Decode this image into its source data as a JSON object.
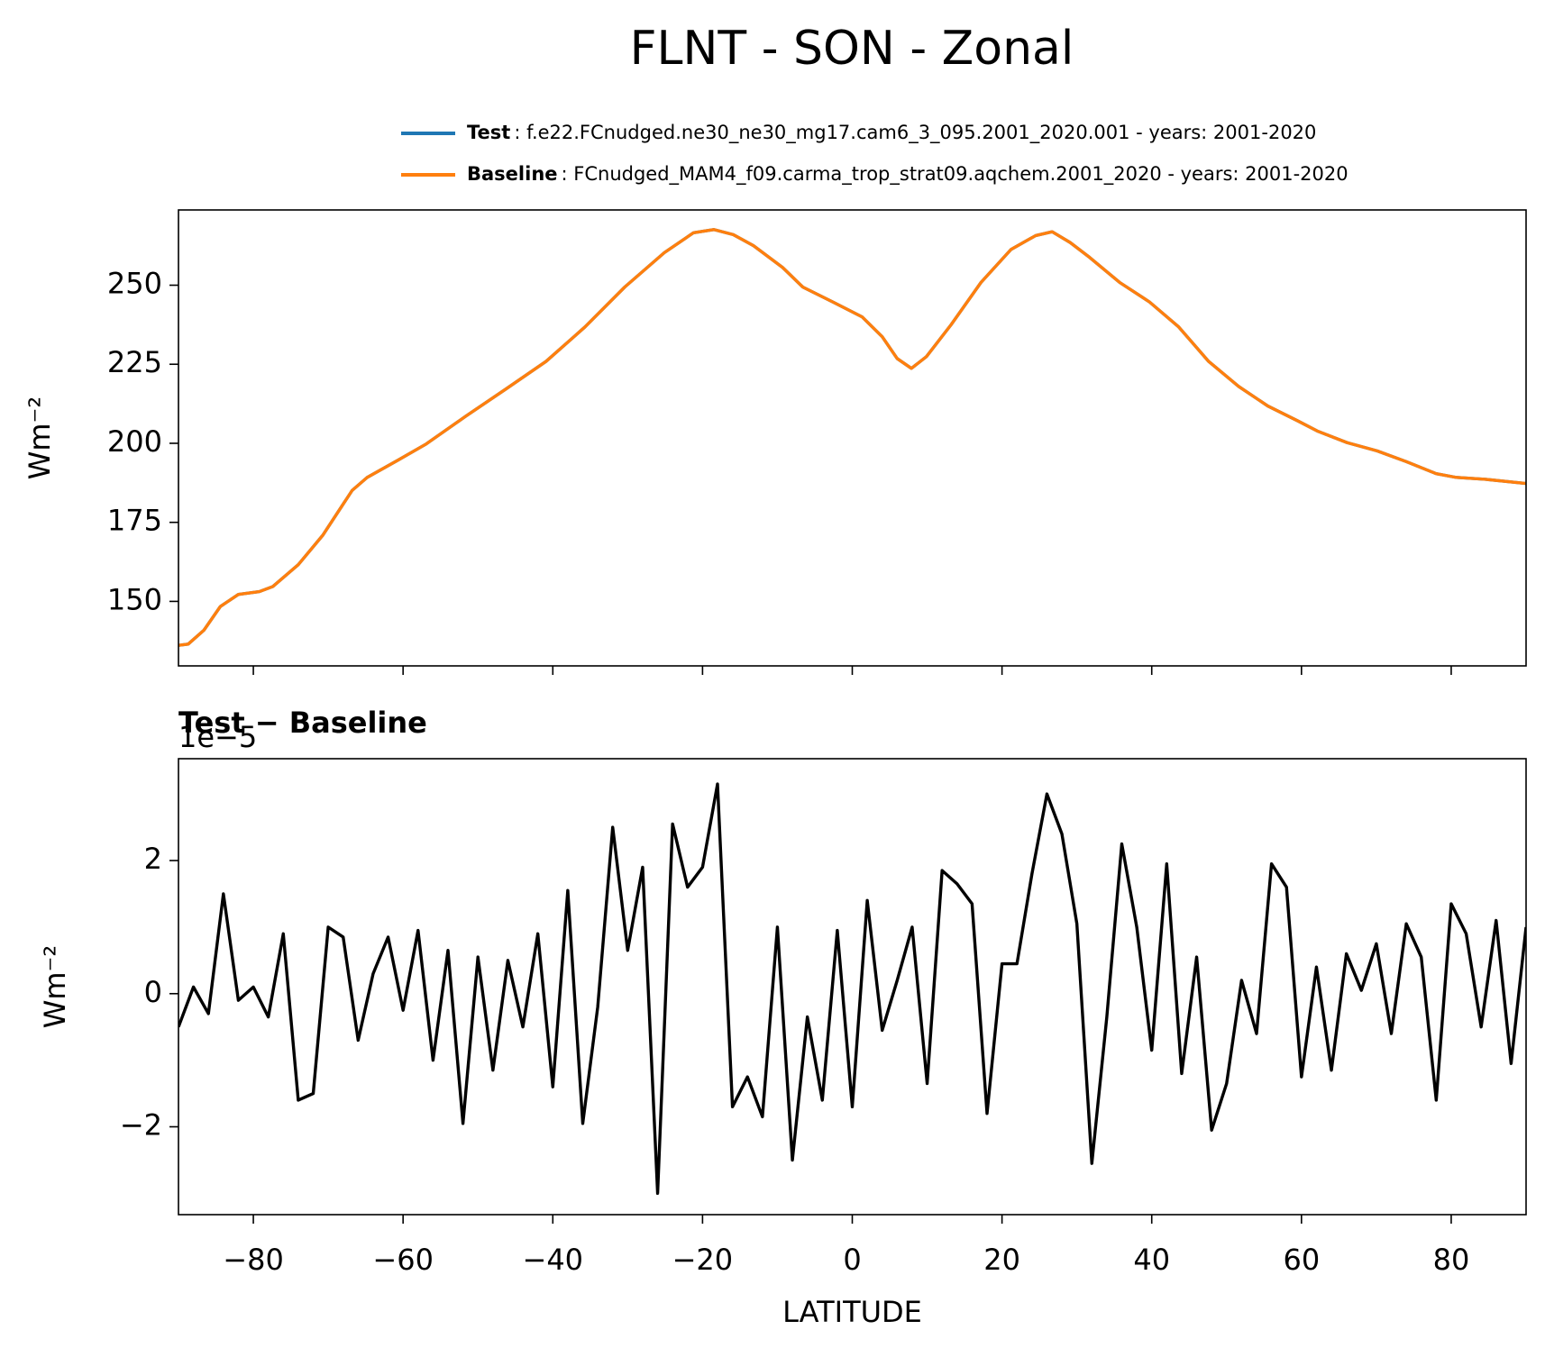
{
  "title": "FLNT - SON - Zonal",
  "chart_data": [
    {
      "type": "line",
      "ylabel": "Wm⁻²",
      "xlim": [
        -90,
        90
      ],
      "ylim": [
        129.6,
        273.8
      ],
      "xticks": [
        -80,
        -60,
        -40,
        -20,
        0,
        20,
        40,
        60,
        80
      ],
      "xtick_labels": false,
      "yticks": [
        150,
        175,
        200,
        225,
        250
      ],
      "x": [
        -90,
        -88.7,
        -86.6,
        -84.4,
        -82,
        -79.2,
        -77.4,
        -74,
        -70.7,
        -66.8,
        -64.8,
        -60.8,
        -56.9,
        -51.6,
        -46.3,
        -40.9,
        -35.7,
        -30.4,
        -25.1,
        -21.2,
        -18.5,
        -15.9,
        -13.2,
        -9.3,
        -6.6,
        -2.6,
        1.3,
        4,
        6,
        7.9,
        9.9,
        13.2,
        17.2,
        21.2,
        24.5,
        26.7,
        29.1,
        31.7,
        35.7,
        39.7,
        43.6,
        47.6,
        51.6,
        55.5,
        59.5,
        62.1,
        66.1,
        70.1,
        74,
        78,
        80.7,
        84.6,
        90
      ],
      "series": [
        {
          "name": "Test",
          "description": ": f.e22.FCnudged.ne30_ne30_mg17.cam6_3_095.2001_2020.001 - years: 2001-2020",
          "color": "#1f77b4",
          "values": [
            136.1,
            136.5,
            140.9,
            148.4,
            152.2,
            153.1,
            154.7,
            161.6,
            171,
            185.1,
            189.2,
            194.5,
            199.8,
            208.6,
            217.1,
            225.9,
            236.8,
            249.4,
            260.3,
            266.6,
            267.6,
            266,
            262.5,
            255.6,
            249.4,
            244.7,
            240,
            233.7,
            226.8,
            223.7,
            227.4,
            237.5,
            250.9,
            261.3,
            265.7,
            266.9,
            263.5,
            258.8,
            250.9,
            244.7,
            236.8,
            225.9,
            218,
            211.8,
            207.1,
            203.9,
            200.2,
            197.6,
            194.2,
            190.4,
            189.2,
            188.6,
            187.3
          ]
        },
        {
          "name": "Baseline",
          "description": ": FCnudged_MAM4_f09.carma_trop_strat09.aqchem.2001_2020 - years: 2001-2020",
          "color": "#ff7f0e",
          "values": [
            136.1,
            136.5,
            140.9,
            148.4,
            152.2,
            153.1,
            154.7,
            161.6,
            171,
            185.1,
            189.2,
            194.5,
            199.8,
            208.6,
            217.1,
            225.9,
            236.8,
            249.4,
            260.3,
            266.6,
            267.6,
            266,
            262.5,
            255.6,
            249.4,
            244.7,
            240,
            233.7,
            226.8,
            223.7,
            227.4,
            237.5,
            250.9,
            261.3,
            265.7,
            266.9,
            263.5,
            258.8,
            250.9,
            244.7,
            236.8,
            225.9,
            218,
            211.8,
            207.1,
            203.9,
            200.2,
            197.6,
            194.2,
            190.4,
            189.2,
            188.6,
            187.3
          ]
        }
      ]
    },
    {
      "type": "line",
      "title": "Test − Baseline",
      "offset_label": "1e−5",
      "xlabel": "LATITUDE",
      "ylabel": "Wm⁻²",
      "xlim": [
        -90,
        90
      ],
      "ylim": [
        -3.32,
        3.53
      ],
      "xticks": [
        {
          "value": -80,
          "label": "−80"
        },
        {
          "value": -60,
          "label": "−60"
        },
        {
          "value": -40,
          "label": "−40"
        },
        {
          "value": -20,
          "label": "−20"
        },
        0,
        20,
        40,
        60,
        80
      ],
      "xtick_labels": true,
      "yticks": [
        {
          "value": -2,
          "label": "−2"
        },
        0,
        2
      ],
      "x": [
        -90,
        -88,
        -86,
        -84,
        -82,
        -80,
        -78,
        -76,
        -74,
        -72,
        -70,
        -68,
        -66,
        -64,
        -62,
        -60,
        -58,
        -56,
        -54,
        -52,
        -50,
        -48,
        -46,
        -44,
        -42,
        -40,
        -38,
        -36,
        -34,
        -32,
        -30,
        -28,
        -26,
        -24,
        -22,
        -20,
        -18,
        -16,
        -14,
        -12,
        -10,
        -8,
        -6,
        -4,
        -2,
        0,
        2,
        4,
        6,
        8,
        10,
        12,
        14,
        16,
        18,
        20,
        22,
        24,
        26,
        28,
        30,
        32,
        34,
        36,
        38,
        40,
        42,
        44,
        46,
        48,
        50,
        52,
        54,
        56,
        58,
        60,
        62,
        64,
        66,
        68,
        70,
        72,
        74,
        76,
        78,
        80,
        82,
        84,
        86,
        88,
        90
      ],
      "series": [
        {
          "color": "#000000",
          "values": [
            -0.5,
            0.1,
            -0.3,
            1.5,
            -0.1,
            0.1,
            -0.35,
            0.9,
            -1.6,
            -1.5,
            1.0,
            0.85,
            -0.7,
            0.3,
            0.85,
            -0.25,
            0.95,
            -1.0,
            0.65,
            -1.95,
            0.55,
            -1.15,
            0.5,
            -0.5,
            0.9,
            -1.4,
            1.55,
            -1.95,
            -0.2,
            2.5,
            0.65,
            1.9,
            -3.0,
            2.55,
            1.6,
            1.9,
            3.15,
            -1.7,
            -1.25,
            -1.85,
            1.0,
            -2.5,
            -0.35,
            -1.6,
            0.95,
            -1.7,
            1.4,
            -0.55,
            0.2,
            1.0,
            -1.35,
            1.85,
            1.65,
            1.35,
            -1.8,
            0.45,
            0.45,
            1.8,
            3.0,
            2.4,
            1.05,
            -2.55,
            -0.35,
            2.25,
            1.0,
            -0.85,
            1.95,
            -1.2,
            0.55,
            -2.05,
            -1.35,
            0.2,
            -0.6,
            1.95,
            1.6,
            -1.25,
            0.4,
            -1.15,
            0.6,
            0.05,
            0.75,
            -0.6,
            1.05,
            0.55,
            -1.6,
            1.35,
            0.9,
            -0.5,
            1.1,
            -1.05,
            1.0
          ]
        }
      ]
    }
  ]
}
